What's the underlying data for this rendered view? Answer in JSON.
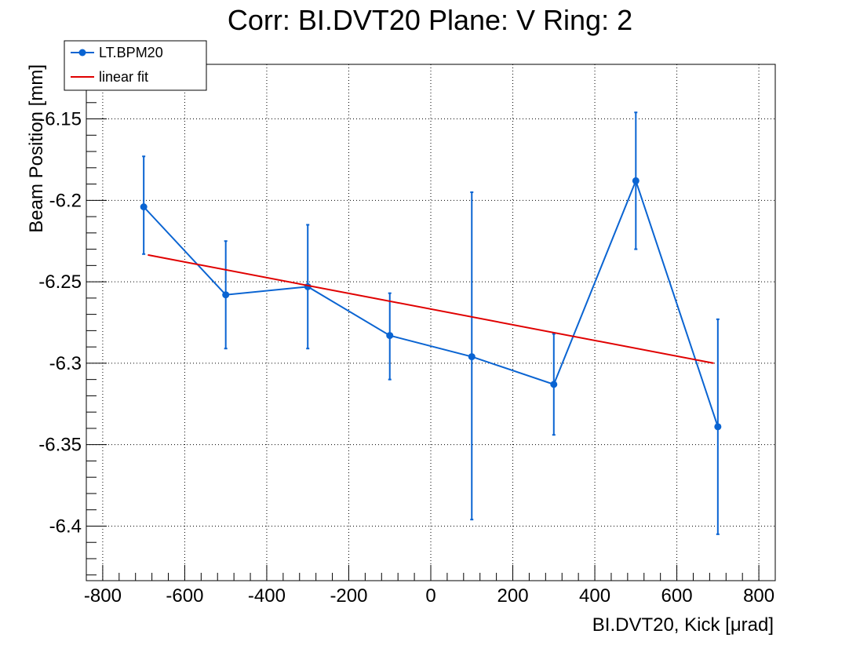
{
  "chart_data": {
    "type": "scatter",
    "title": "Corr: BI.DVT20 Plane: V Ring: 2",
    "xlabel": "BI.DVT20, Kick [μrad]",
    "ylabel": "Beam Position [mm]",
    "xlim": [
      -840,
      840
    ],
    "ylim": [
      -6.4335,
      -6.1165
    ],
    "x_ticks": [
      -800,
      -600,
      -400,
      -200,
      0,
      200,
      400,
      600,
      800
    ],
    "y_ticks": [
      -6.4,
      -6.35,
      -6.3,
      -6.25,
      -6.2,
      -6.15
    ],
    "x_tick_labels": [
      "-800",
      "-600",
      "-400",
      "-200",
      "0",
      "200",
      "400",
      "600",
      "800"
    ],
    "y_tick_labels": [
      "-6.4",
      "-6.35",
      "-6.3",
      "-6.25",
      "-6.2",
      "-6.15"
    ],
    "grid": true,
    "legend_position": "top-left",
    "series": [
      {
        "name": "LT.BPM20",
        "color": "#0a64d2",
        "style": "line-markers-errorbars",
        "x": [
          -700,
          -500,
          -300,
          -100,
          100,
          300,
          500,
          700
        ],
        "y": [
          -6.204,
          -6.258,
          -6.253,
          -6.283,
          -6.296,
          -6.313,
          -6.188,
          -6.339
        ],
        "err_low": [
          -6.233,
          -6.291,
          -6.291,
          -6.31,
          -6.396,
          -6.344,
          -6.23,
          -6.405
        ],
        "err_high": [
          -6.173,
          -6.225,
          -6.215,
          -6.257,
          -6.195,
          -6.282,
          -6.146,
          -6.273
        ]
      },
      {
        "name": "linear fit",
        "color": "#e00000",
        "style": "line",
        "x": [
          -690,
          690
        ],
        "y": [
          -6.2335,
          -6.3
        ]
      }
    ]
  }
}
